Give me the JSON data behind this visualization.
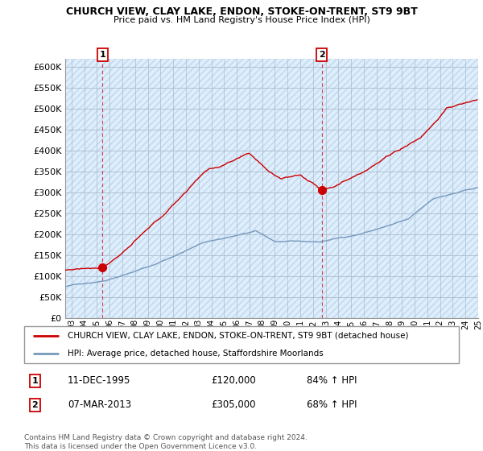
{
  "title": "CHURCH VIEW, CLAY LAKE, ENDON, STOKE-ON-TRENT, ST9 9BT",
  "subtitle": "Price paid vs. HM Land Registry's House Price Index (HPI)",
  "ylim": [
    0,
    620000
  ],
  "yticks": [
    0,
    50000,
    100000,
    150000,
    200000,
    250000,
    300000,
    350000,
    400000,
    450000,
    500000,
    550000,
    600000
  ],
  "xlim_start": 1993.0,
  "xlim_end": 2025.5,
  "sale1": {
    "date_num": 1995.94,
    "price": 120000,
    "label": "1"
  },
  "sale2": {
    "date_num": 2013.18,
    "price": 305000,
    "label": "2"
  },
  "legend_line1": "CHURCH VIEW, CLAY LAKE, ENDON, STOKE-ON-TRENT, ST9 9BT (detached house)",
  "legend_line2": "HPI: Average price, detached house, Staffordshire Moorlands",
  "table_row1": [
    "1",
    "11-DEC-1995",
    "£120,000",
    "84% ↑ HPI"
  ],
  "table_row2": [
    "2",
    "07-MAR-2013",
    "£305,000",
    "68% ↑ HPI"
  ],
  "footnote": "Contains HM Land Registry data © Crown copyright and database right 2024.\nThis data is licensed under the Open Government Licence v3.0.",
  "house_color": "#cc0000",
  "hpi_color": "#7799bb"
}
